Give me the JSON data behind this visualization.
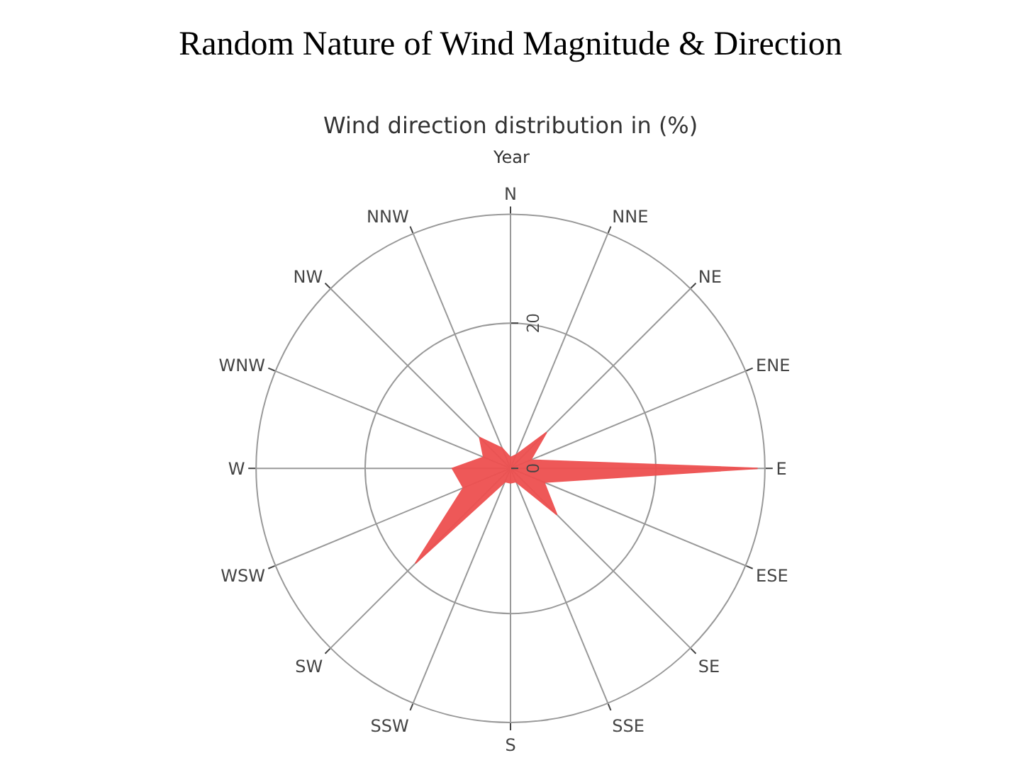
{
  "chart_data": {
    "type": "radar",
    "title": "Random Nature of Wind Magnitude & Direction",
    "subtitle": "Wind direction distribution in (%)",
    "annotations": [
      "Year"
    ],
    "categories": [
      "N",
      "NNE",
      "NE",
      "ENE",
      "E",
      "ESE",
      "SE",
      "SSE",
      "S",
      "SSW",
      "SW",
      "WSW",
      "W",
      "WNW",
      "NW",
      "NNW"
    ],
    "series": [
      {
        "color": "#ee5050",
        "values": [
          1.5,
          2,
          7,
          3,
          34,
          5,
          9,
          2,
          2,
          2,
          18.5,
          7,
          8,
          4,
          6,
          3
        ]
      }
    ],
    "ylim": [
      0,
      35
    ],
    "yticks": [
      0,
      20
    ],
    "grid": true,
    "marker": "none"
  }
}
